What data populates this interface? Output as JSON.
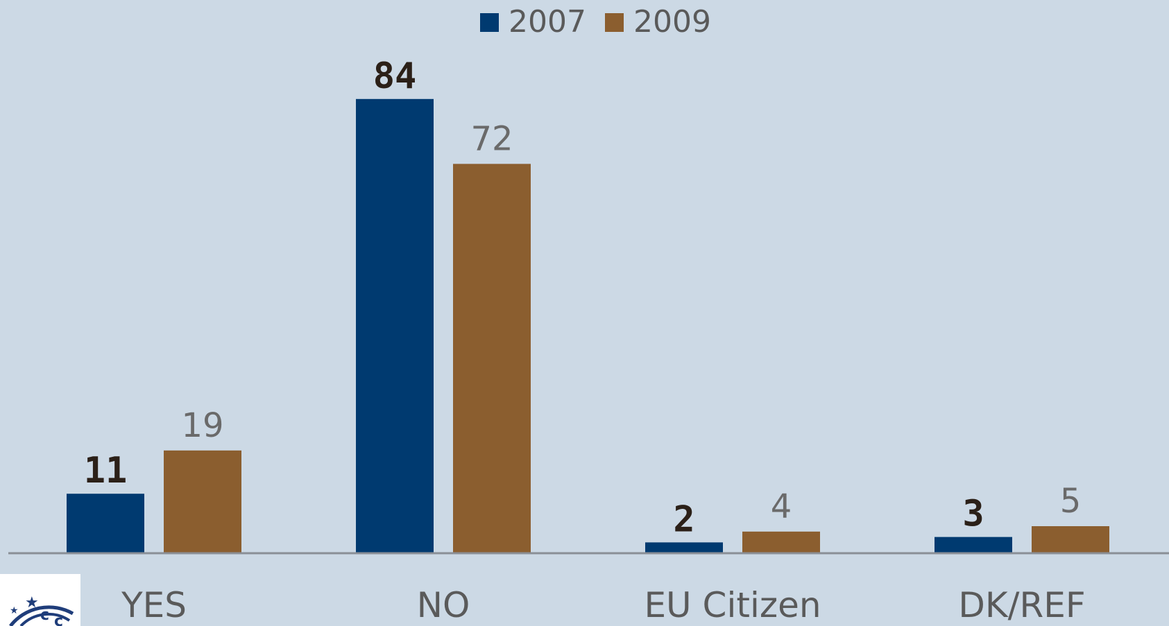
{
  "chart_data": {
    "type": "bar",
    "categories": [
      "YES",
      "NO",
      "EU Citizen",
      "DK/REF"
    ],
    "series": [
      {
        "name": "2007",
        "values": [
          11,
          84,
          2,
          3
        ],
        "color": "#003a70"
      },
      {
        "name": "2009",
        "values": [
          19,
          72,
          4,
          5
        ],
        "color": "#8b5e2f"
      }
    ],
    "ylim": [
      0,
      100
    ],
    "grid": false,
    "legend_position": "top-center",
    "title": "",
    "xlabel": "",
    "ylabel": ""
  },
  "colors": {
    "background": "#ccd9e5",
    "axis": "#8a8f96"
  },
  "logo": {
    "icon": "eu-stars-logo-icon"
  }
}
